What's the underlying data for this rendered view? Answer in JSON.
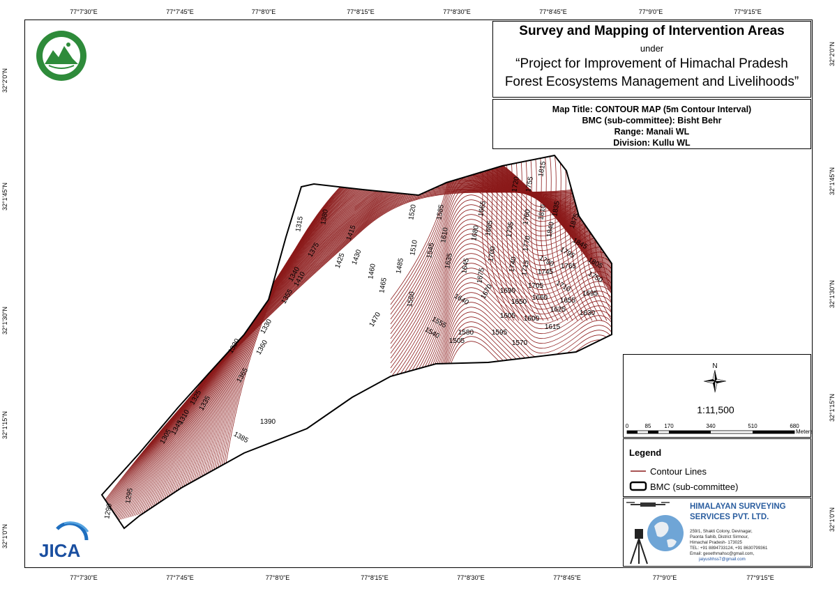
{
  "map": {
    "title": "Survey and Mapping of Intervention Areas",
    "under": "under",
    "project_line1": "“Project for Improvement of Himachal Pradesh",
    "project_line2": "Forest Ecosystems Management and Livelihoods”",
    "map_title": "Map Title: CONTOUR MAP (5m Contour Interval)",
    "bmc": "BMC (sub-committee): Bisht Behr",
    "range": "Range: Manali WL",
    "division": "Division: Kullu WL",
    "contour_color": "#8b1a1a"
  },
  "graticule": {
    "lon_top": [
      "77°7'30\"E",
      "77°7'45\"E",
      "77°8'0\"E",
      "77°8'15\"E",
      "77°8'30\"E",
      "77°8'45\"E",
      "77°9'0\"E",
      "77°9'15\"E"
    ],
    "lon_bottom": [
      "77°7'30\"E",
      "77°7'45\"E",
      "77°8'0\"E",
      "77°8'15\"E",
      "77°8'30\"E",
      "77°8'45\"E",
      "77°9'0\"E",
      "77°9'15\"E"
    ],
    "lat_left": [
      "32°2'0\"N",
      "32°1'45\"N",
      "32°1'30\"N",
      "32°1'15\"N",
      "32°1'0\"N"
    ],
    "lat_right": [
      "32°2'0\"N",
      "32°1'45\"N",
      "32°1'30\"N",
      "32°1'15\"N",
      "32°1'0\"N"
    ]
  },
  "contour_labels": [
    "1290",
    "1295",
    "1305",
    "1345",
    "1310",
    "1325",
    "1335",
    "1365",
    "1320",
    "1360",
    "1330",
    "1355",
    "1340",
    "1410",
    "1375",
    "1315",
    "1380",
    "1425",
    "1430",
    "1415",
    "1460",
    "1465",
    "1470",
    "1485",
    "1520",
    "1510",
    "1550",
    "1545",
    "1585",
    "1610",
    "1635",
    "1540",
    "1555",
    "1505",
    "1580",
    "1595",
    "1570",
    "1645",
    "1680",
    "1665",
    "1685",
    "1675",
    "1670",
    "1640",
    "1700",
    "1735",
    "1740",
    "1715",
    "1720",
    "1755",
    "1760",
    "1810",
    "1815",
    "1835",
    "1875",
    "1840",
    "1845",
    "1770",
    "1790",
    "1795",
    "1765",
    "1805",
    "1745",
    "1750",
    "1690",
    "1705",
    "1710",
    "1650",
    "1660",
    "1655",
    "1695",
    "1605",
    "1600",
    "1625",
    "1630",
    "1615",
    "1390",
    "1385"
  ],
  "scale": {
    "north": "N",
    "ratio": "1:11,500",
    "ticks": [
      "0",
      "85",
      "170",
      "340",
      "510",
      "680"
    ],
    "unit": "Meters"
  },
  "legend": {
    "title": "Legend",
    "items": [
      "Contour Lines",
      "BMC (sub-committee)"
    ]
  },
  "company": {
    "name_line1": "HIMALAYAN SURVEYING",
    "name_line2": "SERVICES PVT. LTD.",
    "address": [
      "259/1, Shakti Colony, Devinagar,",
      "Paonta Sahib, District Sirmour,",
      "Himachal Pradesh- 173025",
      "TEL: +91 8894733124, +91 8630799361",
      "Email: geoethmahsc@gmail.com,",
      "jaiyushhss7@gmail.com"
    ]
  },
  "logos": {
    "jica": "JICA"
  }
}
